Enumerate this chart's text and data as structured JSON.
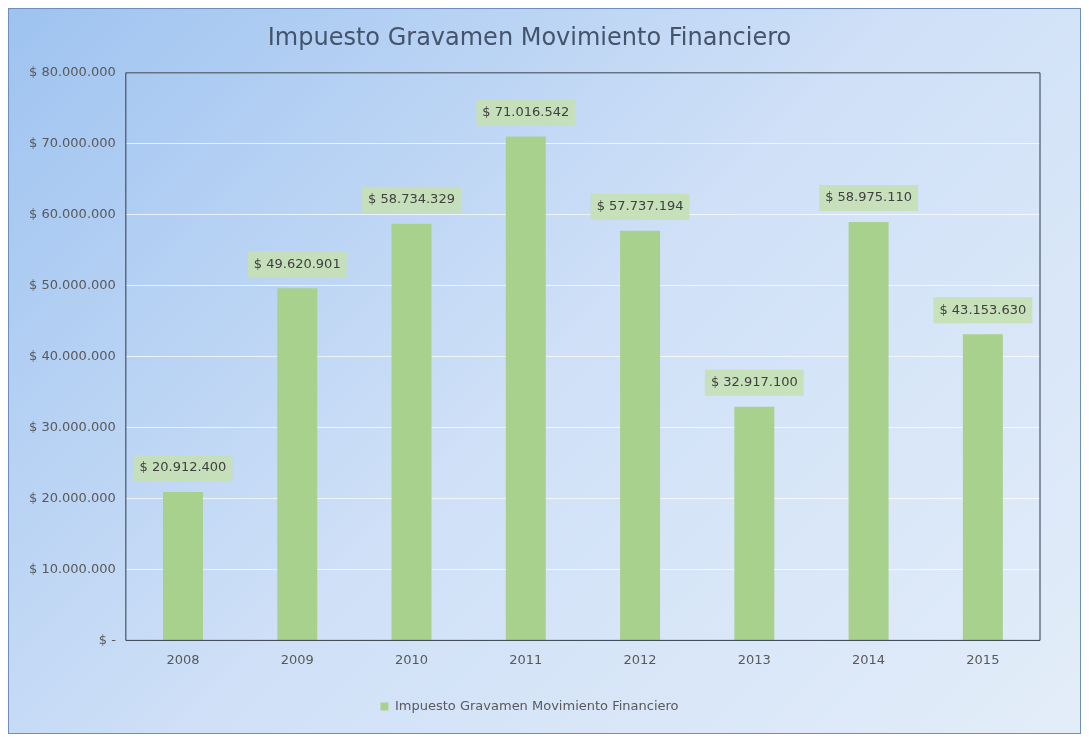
{
  "chart_data": {
    "type": "bar",
    "title": "Impuesto Gravamen Movimiento Financiero",
    "categories": [
      "2008",
      "2009",
      "2010",
      "2011",
      "2012",
      "2013",
      "2014",
      "2015"
    ],
    "series": [
      {
        "name": "Impuesto Gravamen Movimiento Financiero",
        "color": "#a9d18e",
        "values": [
          20912400,
          49620901,
          58734329,
          71016542,
          57737194,
          32917100,
          58975110,
          43153630
        ],
        "value_labels": [
          "$ 20.912.400",
          "$ 49.620.901",
          "$ 58.734.329",
          "$ 71.016.542",
          "$ 57.737.194",
          "$ 32.917.100",
          "$ 58.975.110",
          "$ 43.153.630"
        ]
      }
    ],
    "ylim": [
      0,
      80000000
    ],
    "yticks": [
      {
        "value": 0,
        "label": "$ -"
      },
      {
        "value": 10000000,
        "label": "$ 10.000.000"
      },
      {
        "value": 20000000,
        "label": "$ 20.000.000"
      },
      {
        "value": 30000000,
        "label": "$ 30.000.000"
      },
      {
        "value": 40000000,
        "label": "$ 40.000.000"
      },
      {
        "value": 50000000,
        "label": "$ 50.000.000"
      },
      {
        "value": 60000000,
        "label": "$ 60.000.000"
      },
      {
        "value": 70000000,
        "label": "$ 70.000.000"
      },
      {
        "value": 80000000,
        "label": "$ 80.000.000"
      }
    ],
    "grid": "y",
    "legend": "bottom"
  }
}
